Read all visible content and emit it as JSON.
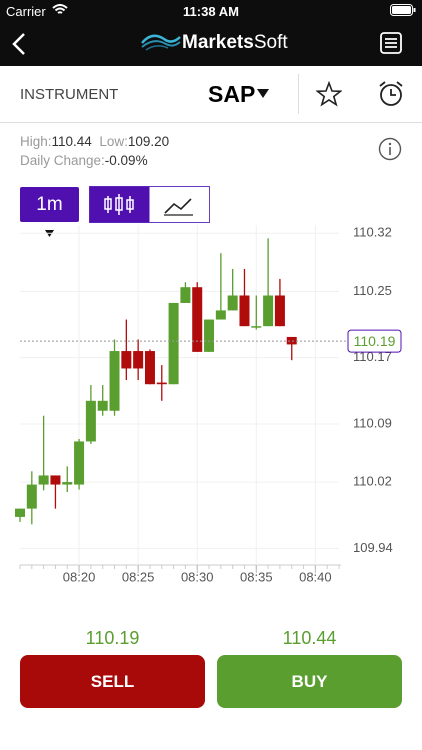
{
  "status_bar": {
    "carrier": "Carrier",
    "time": "11:38 AM"
  },
  "nav": {
    "logo_bold": "Markets",
    "logo_light": "Soft"
  },
  "instrument": {
    "label": "INSTRUMENT",
    "symbol": "SAP"
  },
  "stats": {
    "high_label": "High:",
    "high": "110.44",
    "low_label": "Low:",
    "low": "109.20",
    "change_label": "Daily Change:",
    "change": "-0.09%"
  },
  "interval": "1m",
  "chart_data": {
    "type": "candlestick",
    "x": [
      "08:15",
      "08:16",
      "08:17",
      "08:18",
      "08:19",
      "08:20",
      "08:21",
      "08:22",
      "08:23",
      "08:24",
      "08:25",
      "08:26",
      "08:27",
      "08:28",
      "08:29",
      "08:30",
      "08:31",
      "08:32",
      "08:33",
      "08:34",
      "08:35",
      "08:36",
      "08:37",
      "08:38"
    ],
    "series": [
      {
        "name": "open",
        "values": [
          109.978,
          109.988,
          110.017,
          110.028,
          110.017,
          110.017,
          110.069,
          110.106,
          110.106,
          110.178,
          110.178,
          110.178,
          110.14,
          110.138,
          110.236,
          110.255,
          110.177,
          110.216,
          110.227,
          110.245,
          110.208,
          110.208,
          110.245,
          110.195
        ]
      },
      {
        "name": "high",
        "values": [
          109.988,
          110.033,
          110.1,
          110.028,
          110.039,
          110.072,
          110.137,
          110.137,
          110.192,
          110.216,
          110.192,
          110.18,
          110.161,
          110.236,
          110.261,
          110.261,
          110.216,
          110.296,
          110.277,
          110.277,
          110.245,
          110.314,
          110.265,
          110.195
        ]
      },
      {
        "name": "low",
        "values": [
          109.972,
          109.969,
          110.01,
          109.988,
          110.008,
          110.011,
          110.066,
          110.1,
          110.1,
          110.143,
          110.143,
          110.138,
          110.118,
          110.138,
          110.236,
          110.177,
          110.177,
          110.216,
          110.227,
          110.208,
          110.204,
          110.208,
          110.208,
          110.167
        ]
      },
      {
        "name": "close",
        "values": [
          109.988,
          110.017,
          110.028,
          110.017,
          110.02,
          110.069,
          110.118,
          110.118,
          110.178,
          110.157,
          110.157,
          110.138,
          110.138,
          110.236,
          110.255,
          110.177,
          110.216,
          110.227,
          110.245,
          110.208,
          110.208,
          110.245,
          110.208,
          110.186
        ]
      }
    ],
    "up_color": "#5a9e2f",
    "down_color": "#b00c0c",
    "xlim": [
      "08:15",
      "08:42"
    ],
    "xticks": [
      "08:20",
      "08:25",
      "08:30",
      "08:35",
      "08:40"
    ],
    "ylim": [
      109.92,
      110.33
    ],
    "yticks": [
      110.32,
      110.25,
      110.17,
      110.09,
      110.02,
      109.94
    ],
    "last_price": 110.19,
    "grid": true
  },
  "trade": {
    "sell_price": "110.19",
    "buy_price": "110.44",
    "sell": "SELL",
    "buy": "BUY"
  }
}
